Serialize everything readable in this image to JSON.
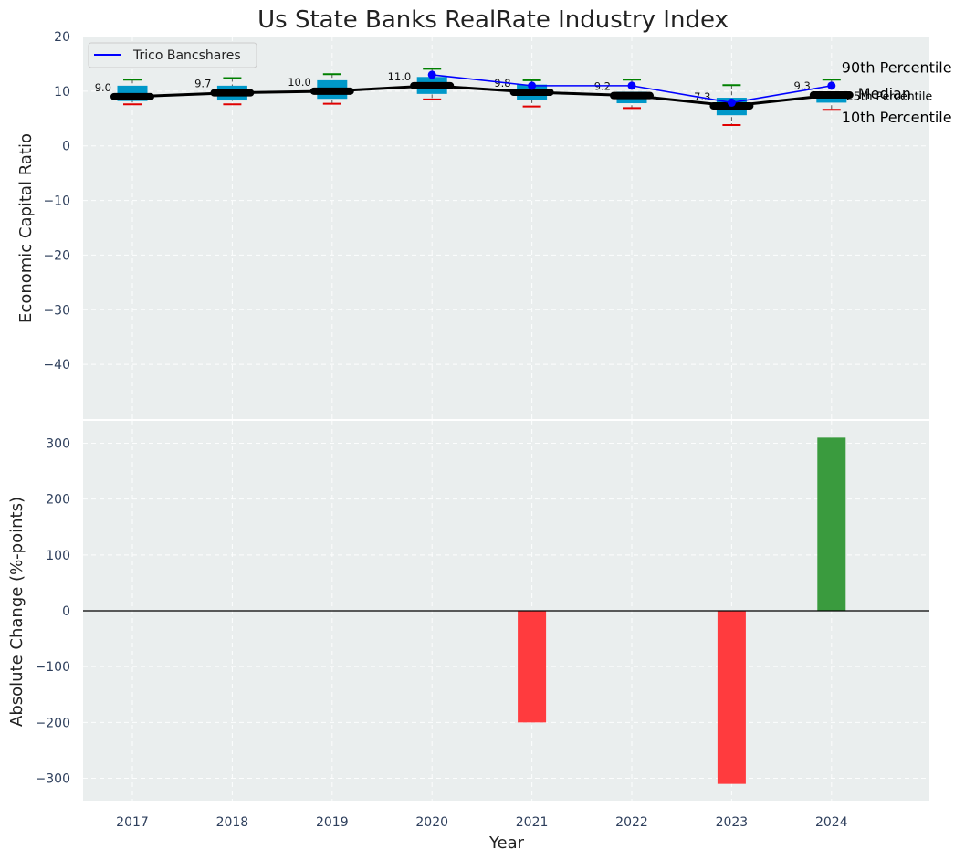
{
  "chart_data": [
    {
      "type": "box",
      "title": "Us State Banks RealRate Industry Index",
      "ylabel": "Economic Capital Ratio",
      "ylim": [
        -50,
        20
      ],
      "yticks": [
        20,
        10,
        0,
        -10,
        -20,
        -30,
        -40
      ],
      "categories": [
        "2017",
        "2018",
        "2019",
        "2020",
        "2021",
        "2022",
        "2023",
        "2024"
      ],
      "percentiles": {
        "p10": [
          7.6,
          7.6,
          7.7,
          8.5,
          7.2,
          6.9,
          3.8,
          6.6
        ],
        "p25": [
          8.2,
          8.3,
          8.6,
          9.5,
          8.4,
          7.8,
          5.6,
          7.9
        ],
        "median": [
          9.0,
          9.7,
          10.0,
          11.0,
          9.8,
          9.2,
          7.3,
          9.3
        ],
        "p75": [
          11.0,
          11.0,
          12.0,
          12.6,
          11.2,
          9.9,
          8.8,
          9.8
        ],
        "p90": [
          12.1,
          12.4,
          13.1,
          14.1,
          12.0,
          12.1,
          11.1,
          12.1
        ]
      },
      "median_labels": [
        "9.0",
        "9.7",
        "10.0",
        "11.0",
        "9.8",
        "9.2",
        "7.3",
        "9.3"
      ],
      "series": [
        {
          "name": "Trico Bancshares",
          "values": [
            null,
            null,
            null,
            13.0,
            11.0,
            11.0,
            7.9,
            11.0
          ]
        }
      ],
      "legend": "top-left",
      "annotations": [
        "90th Percentile",
        "Median",
        "25th Percentile",
        "10th Percentile"
      ],
      "grid": true
    },
    {
      "type": "bar",
      "ylabel": "Absolute Change (%-points)",
      "xlabel": "Year",
      "ylim": [
        -340,
        340
      ],
      "yticks": [
        300,
        200,
        100,
        0,
        -100,
        -200,
        -300
      ],
      "categories": [
        "2017",
        "2018",
        "2019",
        "2020",
        "2021",
        "2022",
        "2023",
        "2024"
      ],
      "values": [
        0,
        0,
        0,
        0,
        -200,
        0,
        -310,
        310
      ],
      "grid": true
    }
  ],
  "colors": {
    "background": "#eaeeee",
    "box": "#0098c9",
    "median_line": "#000000",
    "series_line": "#0000ff",
    "whisker_top": "#008000",
    "whisker_bottom": "#e00000",
    "bar_positive": "#3a9b3e",
    "bar_negative": "#ff3b3e",
    "p25_text": "#0098c9"
  }
}
